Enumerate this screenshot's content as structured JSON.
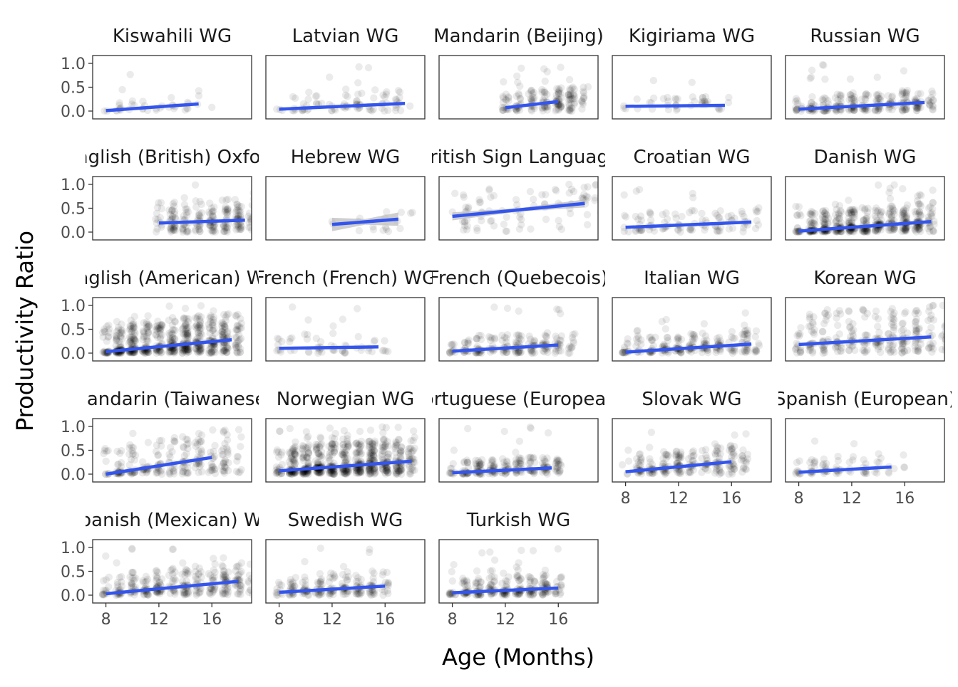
{
  "chart_data": {
    "type": "scatter",
    "xlabel": "Age (Months)",
    "ylabel": "Productivity Ratio",
    "ylim": [
      0,
      1
    ],
    "xlim": [
      7,
      19
    ],
    "x_ticks": [
      8,
      12,
      16
    ],
    "y_ticks": [
      0.0,
      0.5,
      1.0
    ],
    "y_tick_labels": [
      "0.0",
      "0.5",
      "1.0"
    ],
    "point_color": "#000000",
    "point_alpha": 0.08,
    "trend_color": "#3355ee",
    "band_color": "#bdbdbd",
    "facet_columns": 5,
    "facets": [
      {
        "title": "Kiswahili WG",
        "x_range": [
          8,
          16
        ],
        "n": 40,
        "fit": [
          [
            8,
            0.01
          ],
          [
            15,
            0.15
          ]
        ],
        "band": 0.0,
        "spread": 0.18
      },
      {
        "title": "Latvian WG",
        "x_range": [
          8,
          18
        ],
        "n": 90,
        "fit": [
          [
            8,
            0.04
          ],
          [
            17.5,
            0.16
          ]
        ],
        "band": 0.0,
        "spread": 0.28
      },
      {
        "title": "Mandarin (Beijing)",
        "x_range": [
          12,
          18
        ],
        "n": 180,
        "fit": [
          [
            12,
            0.07
          ],
          [
            16,
            0.2
          ]
        ],
        "band": 0.02,
        "spread": 0.3
      },
      {
        "title": "Kigiriama WG",
        "x_range": [
          8,
          16
        ],
        "n": 45,
        "fit": [
          [
            8,
            0.1
          ],
          [
            15.5,
            0.12
          ]
        ],
        "band": 0.0,
        "spread": 0.2
      },
      {
        "title": "Russian WG",
        "x_range": [
          8,
          18
        ],
        "n": 260,
        "fit": [
          [
            8,
            0.04
          ],
          [
            17.5,
            0.18
          ]
        ],
        "band": 0.0,
        "spread": 0.3
      },
      {
        "title": "English (British) Oxford",
        "x_range": [
          12,
          19
        ],
        "n": 230,
        "fit": [
          [
            12,
            0.19
          ],
          [
            18.5,
            0.25
          ]
        ],
        "band": 0.02,
        "spread": 0.45
      },
      {
        "title": "Hebrew WG",
        "x_range": [
          12,
          18
        ],
        "n": 18,
        "fit": [
          [
            12,
            0.16
          ],
          [
            17,
            0.27
          ]
        ],
        "band": 0.1,
        "spread": 0.2
      },
      {
        "title": "British Sign Language",
        "x_range": [
          8,
          19
        ],
        "n": 90,
        "fit": [
          [
            8,
            0.33
          ],
          [
            18,
            0.6
          ]
        ],
        "band": 0.06,
        "spread": 0.5
      },
      {
        "title": "Croatian WG",
        "x_range": [
          8,
          18
        ],
        "n": 110,
        "fit": [
          [
            8,
            0.1
          ],
          [
            17.5,
            0.21
          ]
        ],
        "band": 0.0,
        "spread": 0.3
      },
      {
        "title": "Danish WG",
        "x_range": [
          8,
          18
        ],
        "n": 500,
        "fit": [
          [
            8,
            0.02
          ],
          [
            18,
            0.22
          ]
        ],
        "band": 0.0,
        "spread": 0.4
      },
      {
        "title": "English (American) WG",
        "x_range": [
          8,
          18
        ],
        "n": 650,
        "fit": [
          [
            8,
            0.03
          ],
          [
            17.5,
            0.28
          ]
        ],
        "band": 0.0,
        "spread": 0.55
      },
      {
        "title": "French (French) WG",
        "x_range": [
          8,
          16
        ],
        "n": 60,
        "fit": [
          [
            8,
            0.1
          ],
          [
            15.5,
            0.13
          ]
        ],
        "band": 0.0,
        "spread": 0.3
      },
      {
        "title": "French (Quebecois)",
        "x_range": [
          8,
          17
        ],
        "n": 200,
        "fit": [
          [
            8,
            0.04
          ],
          [
            16,
            0.17
          ]
        ],
        "band": 0.0,
        "spread": 0.3
      },
      {
        "title": "Italian WG",
        "x_range": [
          8,
          18
        ],
        "n": 230,
        "fit": [
          [
            8,
            0.02
          ],
          [
            17.5,
            0.19
          ]
        ],
        "band": 0.0,
        "spread": 0.3
      },
      {
        "title": "Korean WG",
        "x_range": [
          8,
          19
        ],
        "n": 280,
        "fit": [
          [
            8,
            0.18
          ],
          [
            18,
            0.34
          ]
        ],
        "band": 0.02,
        "spread": 0.7
      },
      {
        "title": "Mandarin (Taiwanese)",
        "x_range": [
          8,
          18
        ],
        "n": 240,
        "fit": [
          [
            8,
            0.0
          ],
          [
            16,
            0.35
          ]
        ],
        "band": 0.02,
        "spread": 0.55
      },
      {
        "title": "Norwegian WG",
        "x_range": [
          8,
          18
        ],
        "n": 700,
        "fit": [
          [
            8,
            0.07
          ],
          [
            18,
            0.27
          ]
        ],
        "band": 0.0,
        "spread": 0.5
      },
      {
        "title": "Portuguese (European)",
        "x_range": [
          8,
          16
        ],
        "n": 220,
        "fit": [
          [
            8,
            0.03
          ],
          [
            15.5,
            0.13
          ]
        ],
        "band": 0.0,
        "spread": 0.25
      },
      {
        "title": "Slovak WG",
        "x_range": [
          8,
          17
        ],
        "n": 230,
        "fit": [
          [
            8,
            0.05
          ],
          [
            16,
            0.26
          ]
        ],
        "band": 0.0,
        "spread": 0.35
      },
      {
        "title": "Spanish (European)",
        "x_range": [
          8,
          16
        ],
        "n": 80,
        "fit": [
          [
            8,
            0.04
          ],
          [
            15,
            0.15
          ]
        ],
        "band": 0.0,
        "spread": 0.3
      },
      {
        "title": "Spanish (Mexican) WG",
        "x_range": [
          8,
          19
        ],
        "n": 320,
        "fit": [
          [
            8,
            0.03
          ],
          [
            18,
            0.29
          ]
        ],
        "band": 0.0,
        "spread": 0.4
      },
      {
        "title": "Swedish WG",
        "x_range": [
          8,
          16
        ],
        "n": 200,
        "fit": [
          [
            8,
            0.06
          ],
          [
            16,
            0.19
          ]
        ],
        "band": 0.0,
        "spread": 0.3
      },
      {
        "title": "Turkish WG",
        "x_range": [
          8,
          16
        ],
        "n": 260,
        "fit": [
          [
            8,
            0.05
          ],
          [
            16,
            0.15
          ]
        ],
        "band": 0.0,
        "spread": 0.3
      }
    ]
  }
}
